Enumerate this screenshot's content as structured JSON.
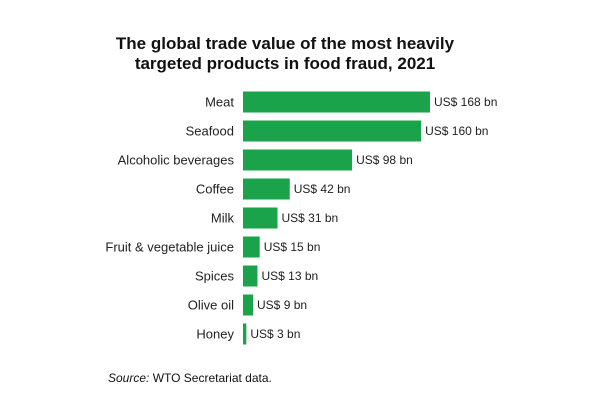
{
  "chart_data": {
    "type": "bar",
    "orientation": "horizontal",
    "title_line1": "The global trade value of the most heavily",
    "title_line2": "targeted products in food fraud, 2021",
    "categories": [
      "Meat",
      "Seafood",
      "Alcoholic beverages",
      "Coffee",
      "Milk",
      "Fruit & vegetable juice",
      "Spices",
      "Olive oil",
      "Honey"
    ],
    "values": [
      168,
      160,
      98,
      42,
      31,
      15,
      13,
      9,
      3
    ],
    "value_labels": [
      "US$ 168 bn",
      "US$ 160 bn",
      "US$ 98 bn",
      "US$ 42 bn",
      "US$ 31 bn",
      "US$ 15 bn",
      "US$ 13 bn",
      "US$ 9 bn",
      "US$ 3 bn"
    ],
    "xlim": [
      0,
      168
    ],
    "bar_color": "#1aa34a",
    "grid": false,
    "legend": "none"
  },
  "source": {
    "label": "Source:",
    "text": " WTO Secretariat data."
  }
}
